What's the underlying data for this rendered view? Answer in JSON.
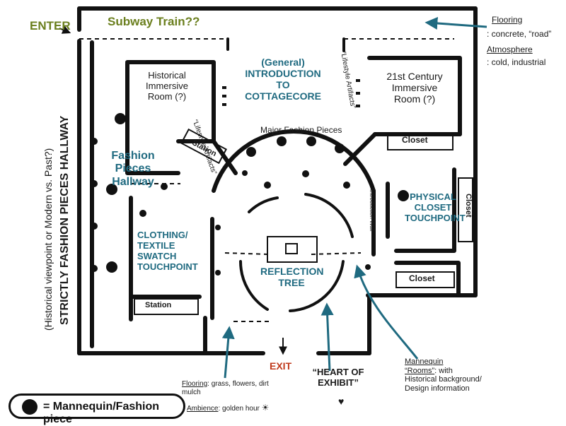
{
  "labels": {
    "enter": "ENTER",
    "subway": "Subway Train??",
    "flooring_top_label": "Flooring",
    "flooring_top_value": ": concrete, “road”",
    "atmosphere_label": "Atmosphere",
    "atmosphere_value": ": cold, industrial",
    "historical_room": "Historical Immersive Room (?)",
    "general_intro": "(General) INTRODUCTION TO COTTAGECORE",
    "lifestyle_artifacts_left": "“Lifestyle Artifacts”",
    "lifestyle_artifacts_right": "“Lifestyle Artifacts”",
    "century_room": "21st Century Immersive Room (?)",
    "station_top": "Station",
    "major_fashion": "Major Fashion Pieces",
    "closet_top": "Closet",
    "fashion_hallway": "Fashion Pieces Hallway",
    "introduction_wall": "Introduction Wall",
    "physical_closet": "PHYSICAL CLOSET TOUCHPOINT",
    "closet_right": "Closet",
    "clothing_swatch": "CLOTHING/ TEXTILE SWATCH TOUCHPOINT",
    "reflection_tree": "REFLECTION TREE",
    "closet_bottom": "Closet",
    "station_bottom": "Station",
    "strictly_fashion": "STRICTLY FASHION PIECES HALLWAY",
    "historical_viewpoint": "(Historical viewpoint or Modern vs. Past?)",
    "exit": "EXIT",
    "heart_of_exhibit": "“HEART OF EXHIBIT”",
    "heart_symbol": "♥",
    "flooring_bottom_label": "Flooring",
    "flooring_bottom_value": ": grass, flowers, dirt mulch",
    "ambience_label": "Ambience",
    "ambience_value": ": golden hour",
    "sun_symbol": "☀",
    "mannequin_rooms_title": "Mannequin",
    "mannequin_rooms_quote": "“Rooms”",
    "mannequin_rooms_rest": ": with Historical background/ Design information",
    "legend": "= Mannequin/Fashion piece"
  },
  "colors": {
    "ink": "#111111",
    "teal": "#1f6a80",
    "olive": "#6b7f1e",
    "red": "#c0391b"
  }
}
